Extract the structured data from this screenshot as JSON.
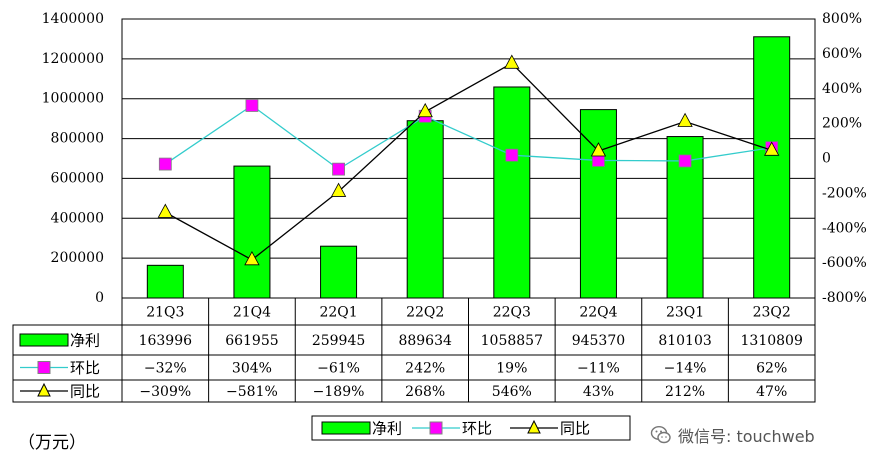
{
  "unit_label": "（万元）",
  "watermark": "微信号: touchweb",
  "colors": {
    "bar_fill": "#00ff00",
    "bar_stroke": "#000000",
    "qoq_line": "#33cccc",
    "qoq_marker": "#ff00ff",
    "yoy_line": "#000000",
    "yoy_marker": "#ffff00"
  },
  "legend": [
    "净利",
    "环比",
    "同比"
  ],
  "chart_data": {
    "type": "bar",
    "title": "",
    "categories": [
      "21Q3",
      "21Q4",
      "22Q1",
      "22Q2",
      "22Q3",
      "22Q4",
      "23Q1",
      "23Q2"
    ],
    "y_left": {
      "min": 0,
      "max": 1400000,
      "step": 200000,
      "tick_labels": [
        "0",
        "200000",
        "400000",
        "600000",
        "800000",
        "1000000",
        "1200000",
        "1400000"
      ]
    },
    "y_right": {
      "min": -800,
      "max": 800,
      "step": 200,
      "unit": "%",
      "tick_labels": [
        "-800%",
        "-600%",
        "-400%",
        "-200%",
        "0",
        "200%",
        "400%",
        "600%",
        "800%"
      ]
    },
    "grid": true,
    "legend_position": "bottom",
    "series": [
      {
        "name": "净利",
        "type": "bar",
        "axis": "left",
        "values": [
          163996,
          661955,
          259945,
          889634,
          1058857,
          945370,
          810103,
          1310809
        ],
        "labels": [
          "163996",
          "661955",
          "259945",
          "889634",
          "1058857",
          "945370",
          "810103",
          "1310809"
        ]
      },
      {
        "name": "环比",
        "type": "line",
        "axis": "right",
        "marker": "square",
        "values": [
          -32,
          304,
          -61,
          242,
          19,
          -11,
          -14,
          62
        ],
        "labels": [
          "−32%",
          "304%",
          "−61%",
          "242%",
          "19%",
          "−11%",
          "−14%",
          "62%"
        ]
      },
      {
        "name": "同比",
        "type": "line",
        "axis": "right",
        "marker": "triangle",
        "values": [
          -309,
          -581,
          -189,
          268,
          546,
          43,
          212,
          47
        ],
        "labels": [
          "−309%",
          "−581%",
          "−189%",
          "268%",
          "546%",
          "43%",
          "212%",
          "47%"
        ]
      }
    ]
  }
}
